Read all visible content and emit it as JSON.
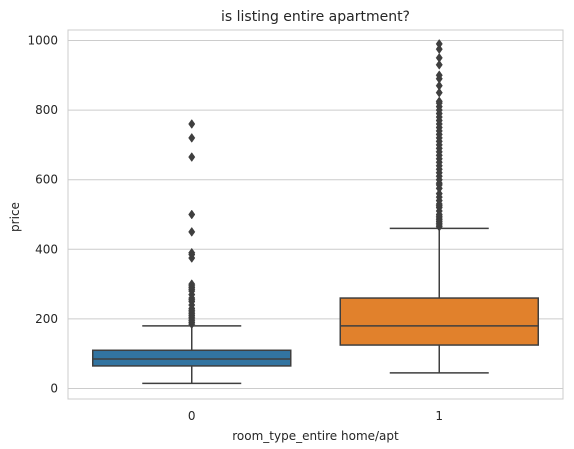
{
  "chart_data": {
    "type": "box",
    "title": "is listing entire apartment?",
    "xlabel": "room_type_entire home/apt",
    "ylabel": "price",
    "categories": [
      "0",
      "1"
    ],
    "ylim": [
      -30,
      1030
    ],
    "yticks": [
      0,
      200,
      400,
      600,
      800,
      1000
    ],
    "grid": "horizontal",
    "colors": [
      "#3274a1",
      "#e1812c"
    ],
    "edge_color": "#3f3f3f",
    "boxes": [
      {
        "category": "0",
        "whisker_low": 15,
        "q1": 65,
        "median": 85,
        "q3": 110,
        "whisker_high": 180,
        "outliers": [
          185,
          190,
          195,
          200,
          205,
          210,
          215,
          220,
          225,
          230,
          240,
          250,
          255,
          260,
          270,
          280,
          285,
          290,
          295,
          300,
          375,
          385,
          390,
          450,
          500,
          665,
          720,
          760
        ]
      },
      {
        "category": "1",
        "whisker_low": 45,
        "q1": 125,
        "median": 180,
        "q3": 260,
        "whisker_high": 460,
        "outliers": [
          465,
          470,
          475,
          480,
          485,
          490,
          495,
          500,
          510,
          520,
          525,
          530,
          540,
          550,
          560,
          575,
          585,
          590,
          600,
          610,
          620,
          630,
          640,
          650,
          660,
          670,
          680,
          690,
          700,
          710,
          720,
          730,
          740,
          750,
          760,
          770,
          780,
          790,
          800,
          810,
          820,
          825,
          850,
          870,
          890,
          900,
          930,
          950,
          975,
          990
        ]
      }
    ]
  }
}
